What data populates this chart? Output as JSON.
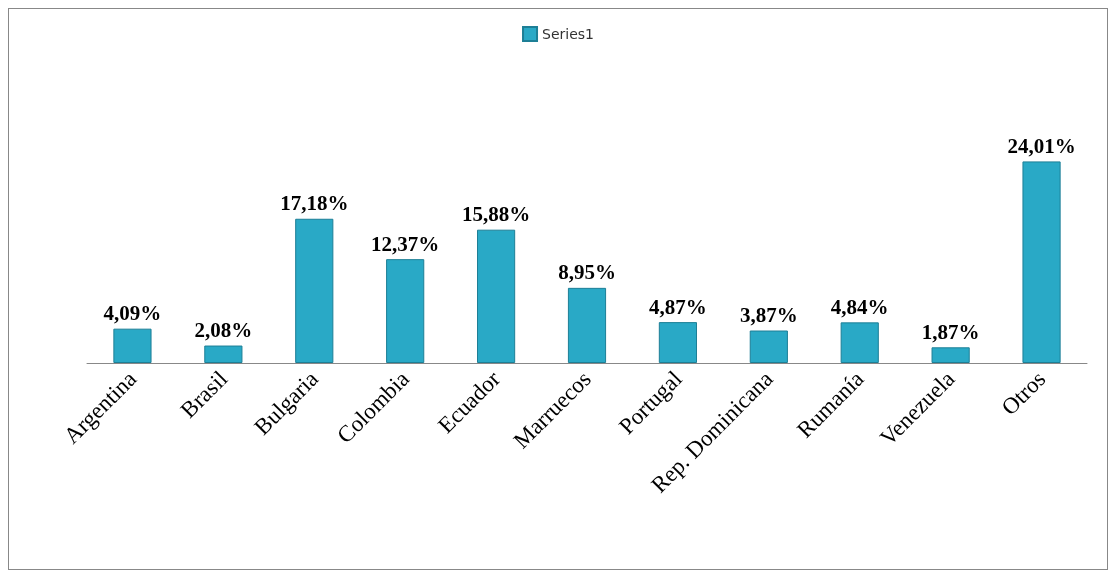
{
  "chart_data": {
    "type": "bar",
    "categories": [
      "Argentina",
      "Brasil",
      "Bulgaria",
      "Colombia",
      "Ecuador",
      "Marruecos",
      "Portugal",
      "Rep. Dominicana",
      "Rumanía",
      "Venezuela",
      "Otros"
    ],
    "series": [
      {
        "name": "Series1",
        "color": "#29a9c6",
        "values": [
          4.09,
          2.08,
          17.18,
          12.37,
          15.88,
          8.95,
          4.87,
          3.87,
          4.84,
          1.87,
          24.01
        ],
        "value_labels": [
          "4,09%",
          "2,08%",
          "17,18%",
          "12,37%",
          "15,88%",
          "8,95%",
          "4,87%",
          "3,87%",
          "4,84%",
          "1,87%",
          "24,01%"
        ]
      }
    ],
    "legend": "top",
    "grid": false
  }
}
